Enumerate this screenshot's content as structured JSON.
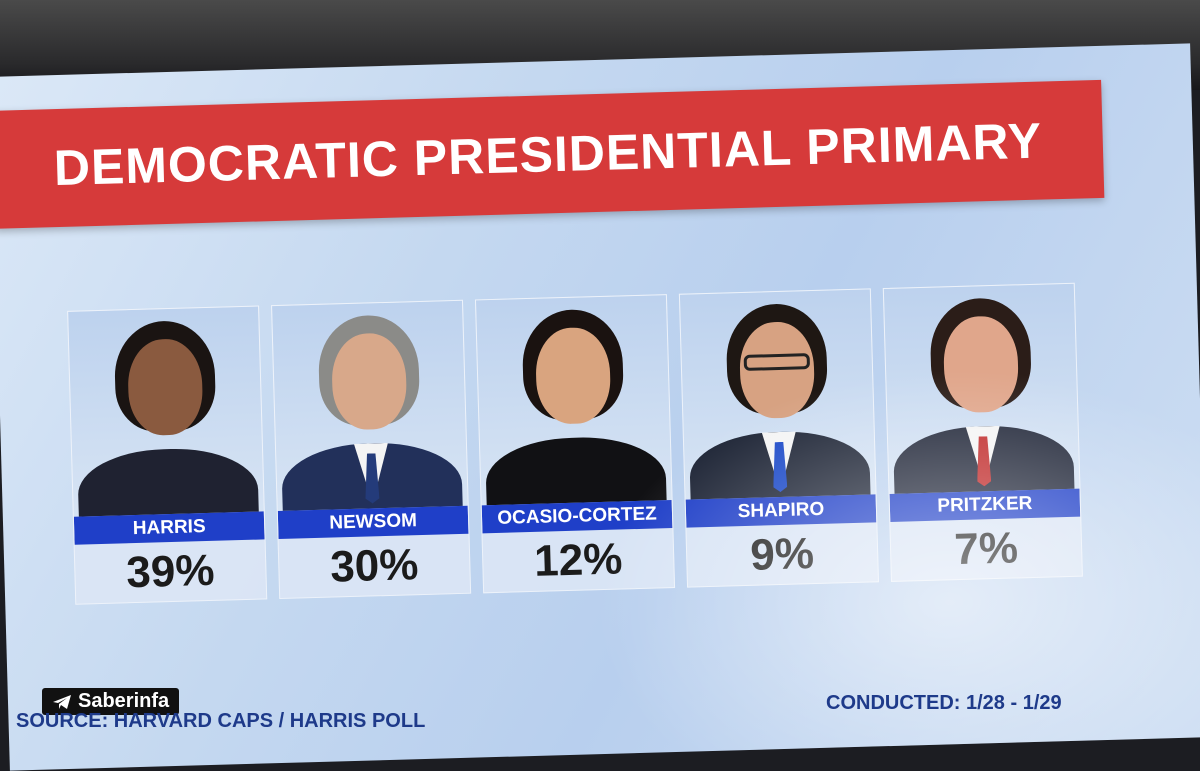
{
  "title": "DEMOCRATIC PRESIDENTIAL PRIMARY",
  "candidates": [
    {
      "name": "HARRIS",
      "percent": "39%",
      "skin": "#8a5a3f",
      "hair": "#1a1412",
      "outfit": "#1f2231",
      "tie": ""
    },
    {
      "name": "NEWSOM",
      "percent": "30%",
      "skin": "#d8a88a",
      "hair": "#8b8b88",
      "outfit": "#22305a",
      "tie": "#243b7a"
    },
    {
      "name": "OCASIO-CORTEZ",
      "percent": "12%",
      "skin": "#d9a47f",
      "hair": "#1a1210",
      "outfit": "#111114",
      "tie": ""
    },
    {
      "name": "SHAPIRO",
      "percent": "9%",
      "skin": "#d7a282",
      "hair": "#1e1713",
      "outfit": "#1f2637",
      "tie": "#1b49c8"
    },
    {
      "name": "PRITZKER",
      "percent": "7%",
      "skin": "#e0a68b",
      "hair": "#2b1d18",
      "outfit": "#22283a",
      "tie": "#c02a2a"
    }
  ],
  "watermark": "Saberinfa",
  "source": "SOURCE: HARVARD CAPS / HARRIS POLL",
  "conducted": "CONDUCTED: 1/28 - 1/29",
  "colors": {
    "title_bar": "#d63a3a",
    "name_bar": "#1f3fc8",
    "screen_bg": "#c4d8f0"
  }
}
